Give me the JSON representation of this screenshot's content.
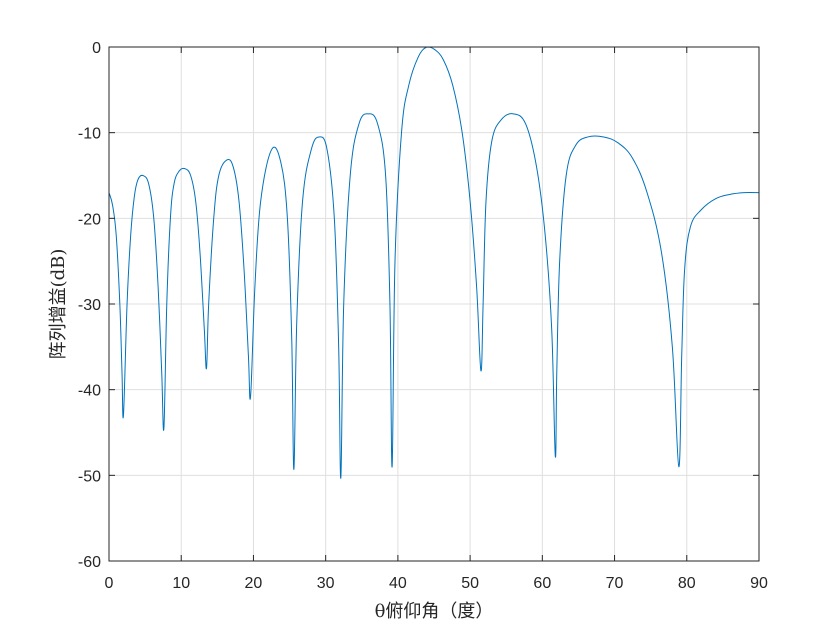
{
  "chart_data": {
    "type": "line",
    "title": "",
    "xlabel": "θ俯仰角（度）",
    "ylabel": "阵列增益(dB)",
    "xlim": [
      0,
      90
    ],
    "ylim": [
      -60,
      0
    ],
    "xticks": [
      0,
      10,
      20,
      30,
      40,
      50,
      60,
      70,
      80,
      90
    ],
    "yticks": [
      0,
      -10,
      -20,
      -30,
      -40,
      -50,
      -60
    ],
    "xtick_labels": [
      "0",
      "10",
      "20",
      "30",
      "40",
      "50",
      "60",
      "70",
      "80",
      "90"
    ],
    "ytick_labels": [
      "0",
      "-10",
      "-20",
      "-30",
      "-40",
      "-50",
      "-60"
    ],
    "grid": true,
    "line_color": "#0072BD",
    "series": [
      {
        "x": [
          0,
          0.5,
          1.0,
          1.5,
          1.8,
          2.0,
          2.5,
          3.0,
          3.5,
          4.0,
          4.7,
          5.5,
          6.2,
          6.8,
          7.3,
          7.6,
          8.0,
          8.5,
          9.0,
          9.7,
          10.5,
          11.3,
          12.0,
          12.6,
          13.2,
          13.5,
          13.8,
          14.5,
          15.2,
          16.3,
          17.2,
          18.0,
          18.7,
          19.3,
          19.6,
          20.2,
          21.0,
          22.5,
          23.8,
          24.7,
          25.3,
          25.6,
          26.0,
          26.8,
          28.0,
          29.1,
          30.2,
          31.2,
          31.8,
          32.1,
          32.5,
          33.4,
          34.6,
          35.9,
          37.2,
          38.3,
          38.9,
          39.2,
          39.6,
          40.5,
          41.5,
          42.8,
          44.0,
          45.1,
          46.3,
          47.6,
          48.9,
          50.0,
          50.9,
          51.5,
          51.8,
          52.2,
          53.0,
          54.3,
          56.0,
          57.7,
          59.2,
          60.4,
          61.3,
          61.8,
          62.0,
          62.4,
          63.3,
          64.6,
          66.3,
          68.5,
          70.5,
          72.5,
          74.5,
          76.5,
          78.0,
          78.9,
          79.3,
          79.7,
          80.5,
          82.0,
          84.0,
          86.0,
          88.0,
          90.0
        ],
        "y": [
          -17.0,
          -18.5,
          -22.0,
          -30.0,
          -38.0,
          -43.0,
          -30.0,
          -22.0,
          -17.5,
          -15.5,
          -15.0,
          -16.0,
          -20.0,
          -28.0,
          -38.0,
          -44.5,
          -30.0,
          -20.0,
          -16.0,
          -14.5,
          -14.2,
          -15.0,
          -18.0,
          -24.0,
          -33.0,
          -37.5,
          -30.0,
          -20.0,
          -15.0,
          -13.2,
          -14.0,
          -18.0,
          -26.0,
          -36.0,
          -40.8,
          -28.0,
          -18.0,
          -12.0,
          -13.5,
          -20.0,
          -34.0,
          -49.3,
          -32.0,
          -18.0,
          -12.0,
          -10.5,
          -12.0,
          -20.0,
          -35.0,
          -50.3,
          -30.0,
          -15.0,
          -9.0,
          -7.8,
          -9.0,
          -15.0,
          -30.0,
          -49.0,
          -25.0,
          -10.0,
          -4.5,
          -1.2,
          0.0,
          -0.3,
          -1.5,
          -4.5,
          -10.0,
          -18.0,
          -28.0,
          -37.8,
          -30.0,
          -18.0,
          -11.0,
          -8.5,
          -7.8,
          -9.0,
          -14.0,
          -22.0,
          -33.0,
          -47.8,
          -38.0,
          -25.0,
          -15.0,
          -11.5,
          -10.5,
          -10.5,
          -11.2,
          -13.0,
          -17.0,
          -24.0,
          -35.0,
          -49.0,
          -36.0,
          -26.0,
          -21.0,
          -19.0,
          -17.7,
          -17.2,
          -17.0,
          -17.0
        ]
      }
    ]
  }
}
